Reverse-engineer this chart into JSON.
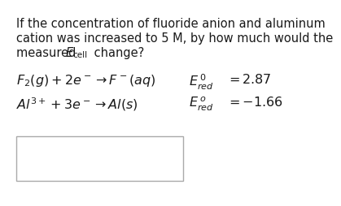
{
  "background_color": "#ffffff",
  "text_color": "#1a1a1a",
  "line1": "If the concentration of fluoride anion and aluminum",
  "line2": "cation was increased to 5 M, by how much would the",
  "line3a": "measured ",
  "line3E": "E",
  "line3sub": "cell",
  "line3c": " change?",
  "eq1_lhs": "$\\mathit{F}_2(g) + 2e^- \\rightarrow F^-(aq)$",
  "eq1_E": "$E^{\\,0}_{red}$",
  "eq1_eq": "$= 2.87$",
  "eq2_lhs": "$\\mathit{Al}^{3+} + 3e^- \\rightarrow \\mathit{Al}(s)$",
  "eq2_E": "$E^{\\,o}_{red}$",
  "eq2_eq": "$= -1.66$",
  "font_body": 10.5,
  "font_eq": 11.5,
  "font_sub": 7.5
}
